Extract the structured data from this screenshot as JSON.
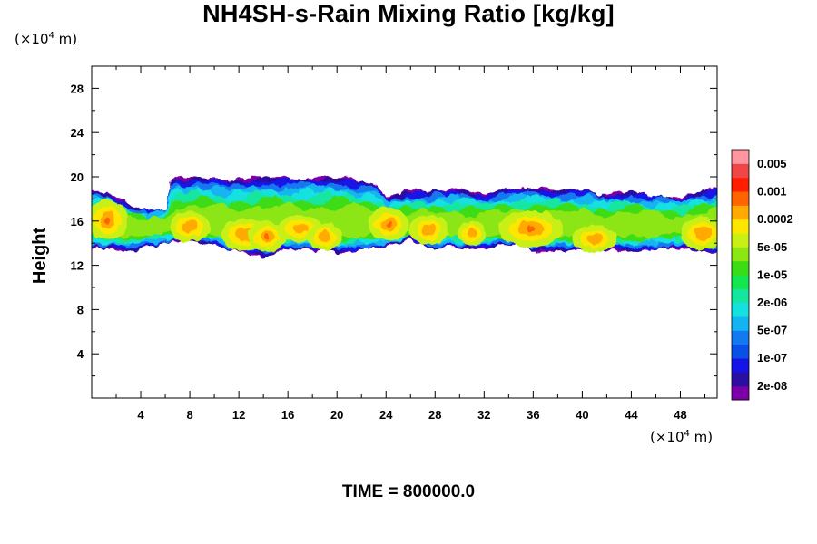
{
  "chart_data": {
    "type": "heatmap",
    "title": "NH4SH-s-Rain Mixing Ratio [kg/kg]",
    "ylabel": "Height",
    "x_unit": "(×10⁴ m)",
    "y_unit": "(×10⁴ m)",
    "footer": "TIME = 800000.0",
    "xlim": [
      0,
      51
    ],
    "ylim": [
      0,
      30
    ],
    "x_ticks": [
      4,
      8,
      12,
      16,
      20,
      24,
      28,
      32,
      36,
      40,
      44,
      48
    ],
    "y_ticks": [
      4,
      8,
      12,
      16,
      20,
      24,
      28
    ],
    "colorbar": {
      "labels": [
        "0.005",
        "0.001",
        "0.0002",
        "5e-05",
        "1e-05",
        "2e-06",
        "5e-07",
        "1e-07",
        "2e-08"
      ],
      "colors": [
        "#7a00a8",
        "#2a0fa0",
        "#1414e6",
        "#0a50e6",
        "#1478f0",
        "#14b4f0",
        "#14e0e0",
        "#14e6a0",
        "#14e650",
        "#3cdc14",
        "#8ce614",
        "#c8f014",
        "#ffe600",
        "#ffaa00",
        "#ff6400",
        "#ff1e00",
        "#f04646",
        "#ff96a0"
      ]
    },
    "cloud_layer": {
      "top_profile": [
        [
          0,
          18.8
        ],
        [
          1.5,
          18.5
        ],
        [
          3,
          17.5
        ],
        [
          4.5,
          16.8
        ],
        [
          6,
          17.2
        ],
        [
          6.4,
          19.8
        ],
        [
          8,
          20
        ],
        [
          10,
          20
        ],
        [
          11,
          19.7
        ],
        [
          14,
          20
        ],
        [
          17,
          19.9
        ],
        [
          20,
          20
        ],
        [
          23,
          19.5
        ],
        [
          24,
          18.3
        ],
        [
          26,
          18.6
        ],
        [
          28,
          18.7
        ],
        [
          30,
          18.9
        ],
        [
          32,
          18.3
        ],
        [
          34,
          19
        ],
        [
          36,
          19.1
        ],
        [
          38,
          18.8
        ],
        [
          40,
          18.9
        ],
        [
          42,
          18.4
        ],
        [
          44,
          18.6
        ],
        [
          46,
          18.3
        ],
        [
          48,
          18.1
        ],
        [
          49.5,
          18.6
        ],
        [
          51,
          19
        ]
      ],
      "bottom_profile": [
        [
          0,
          13.6
        ],
        [
          3,
          13.3
        ],
        [
          6,
          14
        ],
        [
          8,
          14.3
        ],
        [
          10,
          13.8
        ],
        [
          14,
          12.7
        ],
        [
          16,
          13.5
        ],
        [
          20,
          13.2
        ],
        [
          24,
          13.6
        ],
        [
          26,
          14.3
        ],
        [
          28,
          13.5
        ],
        [
          32,
          13.6
        ],
        [
          35,
          14.0
        ],
        [
          36,
          13.1
        ],
        [
          40,
          13.5
        ],
        [
          44,
          13.3
        ],
        [
          48,
          13.6
        ],
        [
          51,
          13.1
        ]
      ],
      "core_height": 15.5
    }
  }
}
